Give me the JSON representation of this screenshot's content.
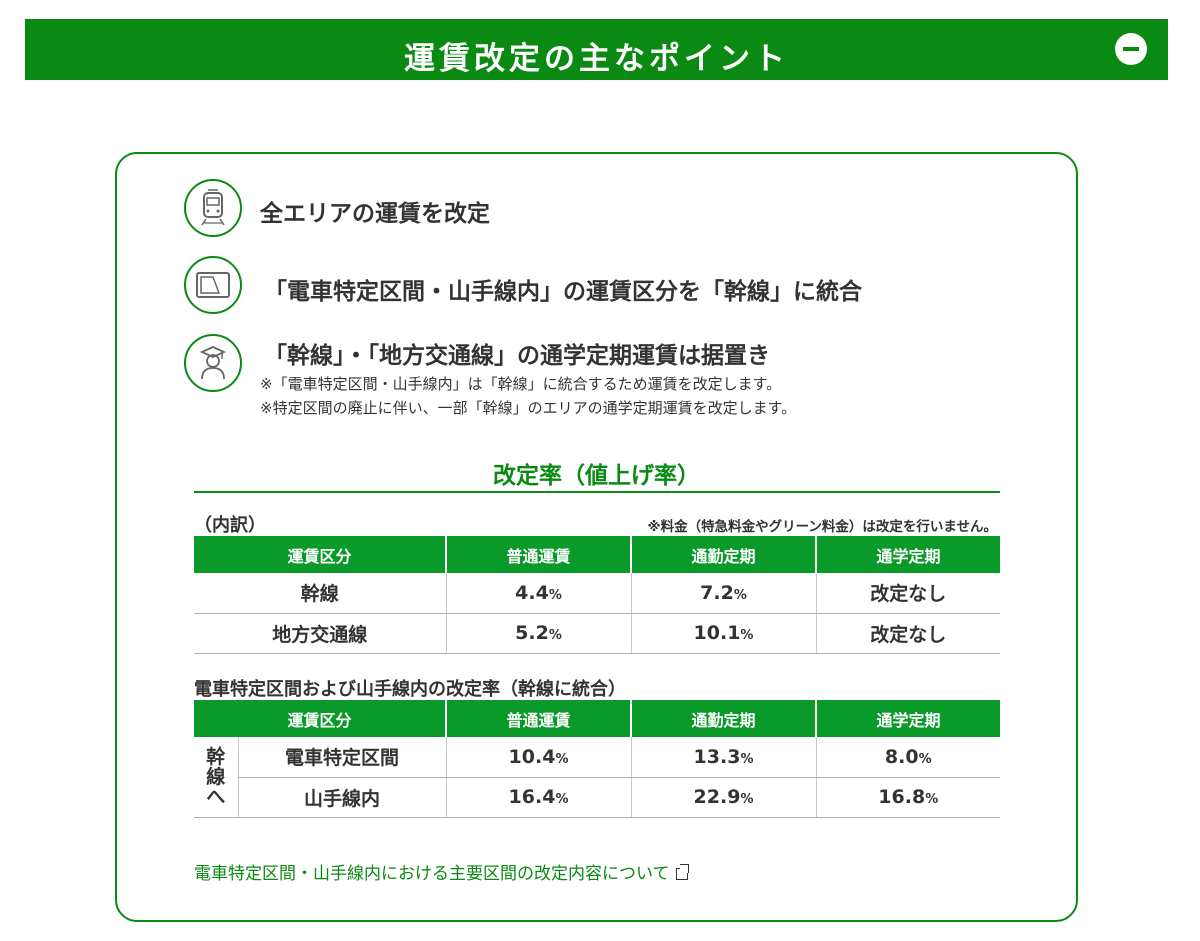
{
  "header": {
    "title": "運賃改定の主なポイント",
    "collapse_icon": "minus-circle-icon"
  },
  "points": [
    {
      "icon": "train-icon",
      "text": "全エリアの運賃を改定"
    },
    {
      "icon": "ticket-card-icon",
      "text": "「電車特定区間・山手線内」の運賃区分を「幹線」に統合"
    },
    {
      "icon": "student-icon",
      "text": "「幹線」・「地方交通線」の通学定期運賃は据置き"
    }
  ],
  "notes": [
    "※「電車特定区間・山手線内」は「幹線」に統合するため運賃を改定します。",
    "※特定区間の廃止に伴い、一部「幹線」のエリアの通学定期運賃を改定します。"
  ],
  "rate": {
    "heading": "改定率（値上げ率）",
    "breakdown_label": "（内訳）",
    "fee_note": "※料金（特急料金やグリーン料金）は改定を行いません。",
    "headers": [
      "運賃区分",
      "普通運賃",
      "通勤定期",
      "通学定期"
    ],
    "unit": "%",
    "rows": [
      {
        "category": "幹線",
        "normal": "4.4",
        "commuter": "7.2",
        "student": "改定なし"
      },
      {
        "category": "地方交通線",
        "normal": "5.2",
        "commuter": "10.1",
        "student": "改定なし"
      }
    ]
  },
  "integration": {
    "title": "電車特定区間および山手線内の改定率（幹線に統合）",
    "headers": [
      "運賃区分",
      "普通運賃",
      "通勤定期",
      "通学定期"
    ],
    "side_label": [
      "幹",
      "線",
      "へ"
    ],
    "rows": [
      {
        "category": "電車特定区間",
        "normal": "10.4",
        "commuter": "13.3",
        "student": "8.0"
      },
      {
        "category": "山手線内",
        "normal": "16.4",
        "commuter": "22.9",
        "student": "16.8"
      }
    ]
  },
  "footer_link": {
    "text": "電車特定区間・山手線内における主要区間の改定内容について",
    "icon": "external-link-icon"
  },
  "colors": {
    "brand_green": "#0a8a12",
    "header_green": "#0a9a2a",
    "text": "#333333"
  }
}
